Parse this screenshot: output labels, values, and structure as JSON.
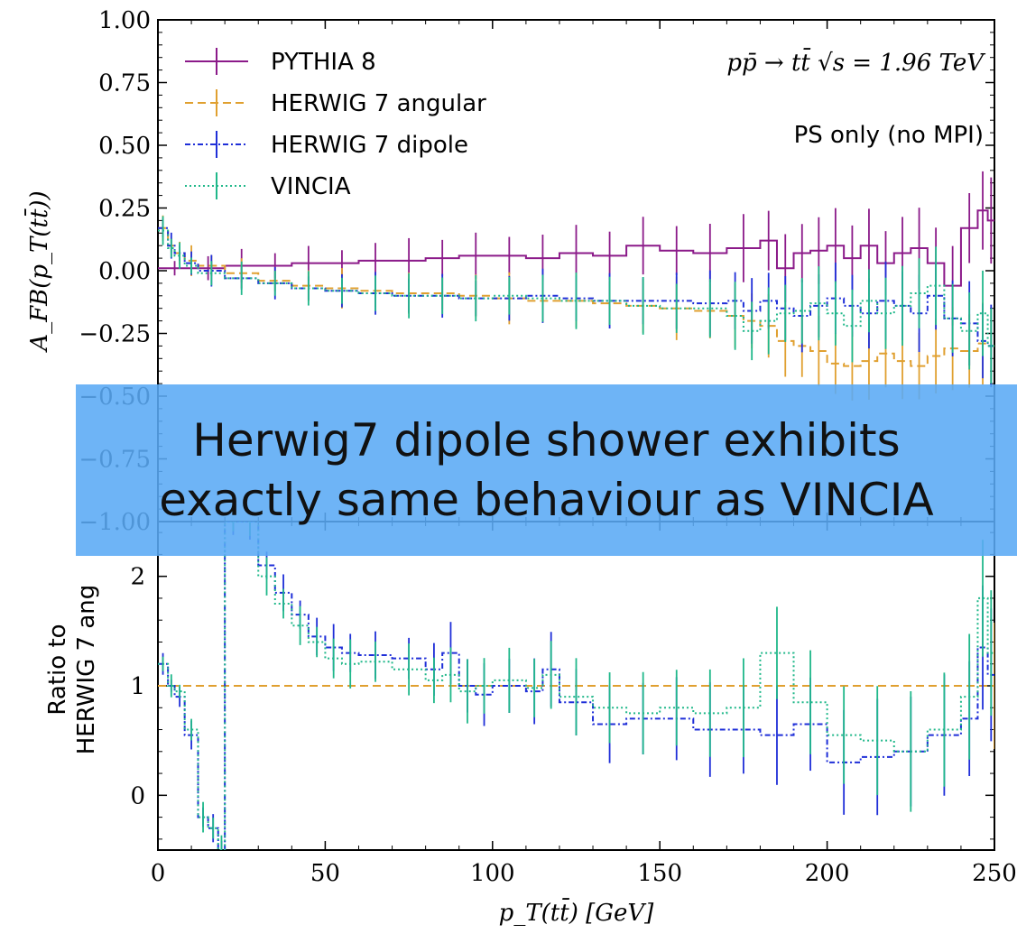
{
  "chart_data": [
    {
      "type": "line",
      "panel": "main",
      "ylabel": "A_FB(p_T(tt̄))",
      "xlim": [
        0,
        250
      ],
      "ylim": [
        -1.0,
        1.0
      ],
      "yticks": [
        "1.00",
        "0.75",
        "0.50",
        "0.25",
        "0.00",
        "−0.25",
        "−0.50",
        "−0.75",
        "−1.00"
      ],
      "annotation": "pp̄ → tt̄   √s = 1.96 TeV",
      "annotation2": "PS only (no MPI)",
      "legend_position": "top-left",
      "series": [
        {
          "name": "PYTHIA 8",
          "color": "#8b1a89",
          "style": "solid",
          "x": [
            0,
            10,
            20,
            30,
            40,
            50,
            60,
            70,
            80,
            90,
            100,
            110,
            120,
            130,
            140,
            150,
            160,
            170,
            180,
            185,
            190,
            195,
            200,
            205,
            210,
            215,
            220,
            225,
            230,
            235,
            240,
            245,
            248
          ],
          "y": [
            0.01,
            0.01,
            0.02,
            0.02,
            0.03,
            0.03,
            0.04,
            0.04,
            0.05,
            0.06,
            0.06,
            0.05,
            0.07,
            0.06,
            0.1,
            0.08,
            0.07,
            0.09,
            0.12,
            0.01,
            0.07,
            0.08,
            0.1,
            0.05,
            0.1,
            0.03,
            0.07,
            0.09,
            0.03,
            -0.06,
            0.17,
            0.24,
            0.2
          ]
        },
        {
          "name": "HERWIG 7 angular",
          "color": "#e0a030",
          "style": "dashed",
          "x": [
            0,
            3,
            5,
            8,
            12,
            20,
            30,
            40,
            50,
            60,
            70,
            80,
            90,
            100,
            110,
            120,
            130,
            140,
            150,
            160,
            170,
            175,
            180,
            185,
            190,
            195,
            200,
            205,
            210,
            215,
            220,
            225,
            230,
            235,
            240,
            245,
            248
          ],
          "y": [
            0.17,
            0.1,
            0.07,
            0.04,
            0.02,
            -0.01,
            -0.04,
            -0.06,
            -0.07,
            -0.08,
            -0.09,
            -0.09,
            -0.1,
            -0.11,
            -0.12,
            -0.12,
            -0.13,
            -0.14,
            -0.15,
            -0.16,
            -0.18,
            -0.2,
            -0.22,
            -0.28,
            -0.3,
            -0.32,
            -0.37,
            -0.38,
            -0.36,
            -0.33,
            -0.36,
            -0.38,
            -0.34,
            -0.31,
            -0.32,
            -0.29,
            -0.3
          ]
        },
        {
          "name": "HERWIG 7 dipole",
          "color": "#1f2fd8",
          "style": "dashdot",
          "x": [
            0,
            3,
            5,
            8,
            12,
            20,
            30,
            40,
            50,
            60,
            70,
            80,
            90,
            100,
            110,
            120,
            130,
            140,
            150,
            160,
            170,
            175,
            180,
            185,
            190,
            195,
            200,
            205,
            210,
            215,
            220,
            225,
            230,
            235,
            240,
            245,
            248
          ],
          "y": [
            0.17,
            0.1,
            0.07,
            0.03,
            0.0,
            -0.03,
            -0.05,
            -0.07,
            -0.08,
            -0.09,
            -0.1,
            -0.1,
            -0.11,
            -0.11,
            -0.1,
            -0.11,
            -0.12,
            -0.12,
            -0.12,
            -0.13,
            -0.12,
            -0.16,
            -0.12,
            -0.15,
            -0.18,
            -0.14,
            -0.11,
            -0.14,
            -0.17,
            -0.12,
            -0.14,
            -0.17,
            -0.1,
            -0.19,
            -0.21,
            -0.28,
            -0.3
          ]
        },
        {
          "name": "VINCIA",
          "color": "#20b88a",
          "style": "dotted",
          "x": [
            0,
            3,
            5,
            8,
            12,
            20,
            30,
            40,
            50,
            60,
            70,
            80,
            90,
            100,
            110,
            120,
            130,
            140,
            150,
            160,
            170,
            175,
            180,
            185,
            190,
            195,
            200,
            205,
            210,
            215,
            220,
            225,
            230,
            235,
            240,
            245,
            248
          ],
          "y": [
            0.16,
            0.09,
            0.06,
            0.02,
            -0.01,
            -0.03,
            -0.05,
            -0.07,
            -0.08,
            -0.09,
            -0.1,
            -0.1,
            -0.11,
            -0.1,
            -0.11,
            -0.12,
            -0.12,
            -0.14,
            -0.15,
            -0.15,
            -0.18,
            -0.24,
            -0.2,
            -0.17,
            -0.16,
            -0.13,
            -0.17,
            -0.22,
            -0.12,
            -0.17,
            -0.14,
            -0.09,
            -0.06,
            -0.19,
            -0.24,
            -0.17,
            -0.3
          ]
        }
      ]
    },
    {
      "type": "line",
      "panel": "ratio",
      "ylabel": "Ratio to HERWIG 7 ang",
      "xlabel": "p_T(tt̄) [GeV]",
      "xlim": [
        0,
        250
      ],
      "ylim": [
        -0.5,
        2.5
      ],
      "xticks": [
        "0",
        "50",
        "100",
        "150",
        "200",
        "250"
      ],
      "yticks": [
        "2",
        "1",
        "0"
      ],
      "series": [
        {
          "name": "HERWIG 7 angular",
          "color": "#e0a030",
          "style": "dashed",
          "x": [
            0,
            250
          ],
          "y": [
            1.0,
            1.0
          ]
        },
        {
          "name": "HERWIG 7 dipole",
          "color": "#1f2fd8",
          "style": "dashdot",
          "x": [
            0,
            3,
            5,
            8,
            12,
            15,
            18,
            20,
            25,
            30,
            35,
            40,
            45,
            50,
            55,
            60,
            70,
            80,
            85,
            90,
            95,
            100,
            110,
            115,
            120,
            130,
            140,
            150,
            160,
            170,
            180,
            190,
            200,
            210,
            220,
            230,
            240,
            245,
            248
          ],
          "y": [
            1.2,
            1.0,
            0.9,
            0.55,
            -0.2,
            -0.3,
            -0.5,
            2.5,
            2.5,
            2.1,
            1.85,
            1.65,
            1.45,
            1.35,
            1.3,
            1.28,
            1.25,
            1.15,
            1.3,
            1.0,
            0.92,
            1.0,
            0.95,
            1.15,
            0.85,
            0.65,
            0.7,
            0.7,
            0.6,
            0.6,
            0.55,
            0.65,
            0.3,
            0.35,
            0.4,
            0.55,
            0.7,
            1.35,
            1.1
          ]
        },
        {
          "name": "VINCIA",
          "color": "#20b88a",
          "style": "dotted",
          "x": [
            0,
            3,
            5,
            8,
            12,
            15,
            18,
            20,
            25,
            30,
            35,
            40,
            45,
            50,
            55,
            60,
            70,
            80,
            85,
            90,
            95,
            100,
            110,
            115,
            120,
            130,
            140,
            150,
            160,
            170,
            180,
            190,
            200,
            210,
            220,
            230,
            240,
            245,
            248
          ],
          "y": [
            1.2,
            1.0,
            0.95,
            0.6,
            -0.2,
            -0.3,
            -0.5,
            2.5,
            2.5,
            2.0,
            1.75,
            1.55,
            1.4,
            1.25,
            1.2,
            1.22,
            1.15,
            1.05,
            1.1,
            0.95,
            1.0,
            1.05,
            0.98,
            1.1,
            0.9,
            0.8,
            0.75,
            0.8,
            0.75,
            0.8,
            1.3,
            0.85,
            0.55,
            0.5,
            0.4,
            0.6,
            0.9,
            1.8,
            1.3
          ]
        }
      ]
    }
  ],
  "banner": {
    "line1": "Herwig7 dipole shower exhibits",
    "line2": "exactly same behaviour as VINCIA"
  }
}
